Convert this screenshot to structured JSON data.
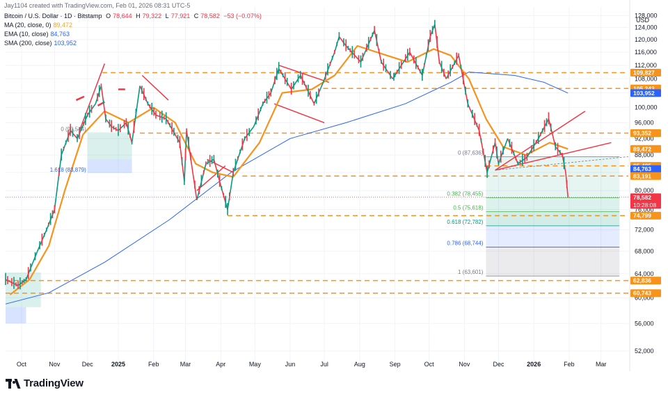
{
  "header": {
    "credit": "Jay1104 created with TradingView.com, Feb 01, 2026 08:31 UTC-5",
    "symbol": "Bitcoin / U.S. Dollar · 1D · Bitstamp",
    "o_label": "O",
    "o_value": "78,644",
    "h_label": "H",
    "h_value": "79,322",
    "l_label": "L",
    "l_value": "77,921",
    "c_label": "C",
    "c_value": "78,582",
    "change": "−53 (−0.07%)",
    "ma_label": "MA (20, close, 0)",
    "ma_value": "89,472",
    "ema_label": "EMA (10, close)",
    "ema_value": "84,763",
    "sma_label": "SMA (200, close)",
    "sma_value": "103,952"
  },
  "currency": "USD",
  "brand": "TradingView",
  "colors": {
    "up": "#089981",
    "down": "#f23645",
    "ma": "#f7931a",
    "sma": "#2962ff",
    "level": "#f7931a",
    "trend": "#f23645",
    "grid": "#f0f3fa"
  },
  "chart_data": {
    "type": "candlestick",
    "yaxis": {
      "scale": "log",
      "range": [
        50000,
        131000
      ],
      "position": "right",
      "ticks": [
        "128,000",
        "124,000",
        "120,000",
        "116,000",
        "112,000",
        "108,000",
        "104,000",
        "100,000",
        "96,000",
        "92,000",
        "88,000",
        "84,000",
        "80,000",
        "76,000",
        "72,000",
        "68,000",
        "64,000",
        "60,000",
        "56,000",
        "52,000"
      ]
    },
    "xaxis": {
      "labels": [
        "Oct",
        "Nov",
        "Dec",
        "2025",
        "Feb",
        "Mar",
        "Apr",
        "May",
        "Jun",
        "Jul",
        "Aug",
        "Sep",
        "Oct",
        "Nov",
        "Dec",
        "2026",
        "Feb",
        "Mar"
      ]
    },
    "grid": true,
    "price_path": [
      [
        "2024-09-24",
        63000
      ],
      [
        "2024-10-05",
        62000
      ],
      [
        "2024-10-12",
        63000
      ],
      [
        "2024-10-22",
        68000
      ],
      [
        "2024-10-30",
        72000
      ],
      [
        "2024-11-06",
        76000
      ],
      [
        "2024-11-12",
        88000
      ],
      [
        "2024-11-20",
        94000
      ],
      [
        "2024-11-26",
        92000
      ],
      [
        "2024-12-05",
        98000
      ],
      [
        "2024-12-12",
        101000
      ],
      [
        "2024-12-17",
        106000
      ],
      [
        "2024-12-21",
        97000
      ],
      [
        "2024-12-26",
        95000
      ],
      [
        "2025-01-01",
        94000
      ],
      [
        "2025-01-08",
        96000
      ],
      [
        "2025-01-13",
        91000
      ],
      [
        "2025-01-20",
        106000
      ],
      [
        "2025-01-27",
        101000
      ],
      [
        "2025-02-03",
        98000
      ],
      [
        "2025-02-12",
        97000
      ],
      [
        "2025-02-24",
        91000
      ],
      [
        "2025-02-28",
        82000
      ],
      [
        "2025-03-02",
        94000
      ],
      [
        "2025-03-11",
        78000
      ],
      [
        "2025-03-19",
        86000
      ],
      [
        "2025-03-26",
        87000
      ],
      [
        "2025-03-31",
        82000
      ],
      [
        "2025-04-07",
        76000
      ],
      [
        "2025-04-12",
        84000
      ],
      [
        "2025-04-22",
        92000
      ],
      [
        "2025-04-30",
        95000
      ],
      [
        "2025-05-08",
        101000
      ],
      [
        "2025-05-15",
        104000
      ],
      [
        "2025-05-22",
        111000
      ],
      [
        "2025-06-02",
        105000
      ],
      [
        "2025-06-10",
        109000
      ],
      [
        "2025-06-22",
        101000
      ],
      [
        "2025-06-30",
        107000
      ],
      [
        "2025-07-10",
        116000
      ],
      [
        "2025-07-14",
        121000
      ],
      [
        "2025-07-20",
        118000
      ],
      [
        "2025-08-02",
        113000
      ],
      [
        "2025-08-14",
        123000
      ],
      [
        "2025-08-20",
        113000
      ],
      [
        "2025-08-30",
        108000
      ],
      [
        "2025-09-01",
        109000
      ],
      [
        "2025-09-14",
        116000
      ],
      [
        "2025-09-25",
        109000
      ],
      [
        "2025-10-02",
        121000
      ],
      [
        "2025-10-06",
        125000
      ],
      [
        "2025-10-10",
        113000
      ],
      [
        "2025-10-16",
        108000
      ],
      [
        "2025-10-27",
        115000
      ],
      [
        "2025-11-04",
        101000
      ],
      [
        "2025-11-14",
        94000
      ],
      [
        "2025-11-21",
        84000
      ],
      [
        "2025-11-28",
        91000
      ],
      [
        "2025-12-01",
        86000
      ],
      [
        "2025-12-09",
        92000
      ],
      [
        "2025-12-18",
        86000
      ],
      [
        "2025-12-26",
        87500
      ],
      [
        "2026-01-05",
        92000
      ],
      [
        "2026-01-14",
        97000
      ],
      [
        "2026-01-20",
        90000
      ],
      [
        "2026-01-26",
        88000
      ],
      [
        "2026-01-29",
        84000
      ],
      [
        "2026-01-31",
        78582
      ]
    ],
    "ma20_path": [
      [
        "2024-09-28",
        60500
      ],
      [
        "2024-10-15",
        63000
      ],
      [
        "2024-11-01",
        69000
      ],
      [
        "2024-11-15",
        80000
      ],
      [
        "2024-12-01",
        93000
      ],
      [
        "2024-12-20",
        99000
      ],
      [
        "2025-01-10",
        96000
      ],
      [
        "2025-02-01",
        100000
      ],
      [
        "2025-02-20",
        96000
      ],
      [
        "2025-03-10",
        86000
      ],
      [
        "2025-03-25",
        84000
      ],
      [
        "2025-04-12",
        83000
      ],
      [
        "2025-05-05",
        91000
      ],
      [
        "2025-05-25",
        104000
      ],
      [
        "2025-06-20",
        105000
      ],
      [
        "2025-07-10",
        109000
      ],
      [
        "2025-07-30",
        118000
      ],
      [
        "2025-08-25",
        115000
      ],
      [
        "2025-09-12",
        113000
      ],
      [
        "2025-10-05",
        117000
      ],
      [
        "2025-10-20",
        115000
      ],
      [
        "2025-11-05",
        108000
      ],
      [
        "2025-11-20",
        97000
      ],
      [
        "2025-12-05",
        90000
      ],
      [
        "2025-12-25",
        88000
      ],
      [
        "2026-01-15",
        91000
      ],
      [
        "2026-01-31",
        89472
      ]
    ],
    "sma200_path": [
      [
        "2024-09-24",
        59000
      ],
      [
        "2024-11-01",
        60800
      ],
      [
        "2024-12-20",
        66000
      ],
      [
        "2025-02-15",
        74000
      ],
      [
        "2025-04-10",
        84000
      ],
      [
        "2025-06-01",
        92000
      ],
      [
        "2025-07-20",
        96000
      ],
      [
        "2025-09-10",
        101000
      ],
      [
        "2025-10-20",
        107000
      ],
      [
        "2025-11-05",
        110000
      ],
      [
        "2025-12-15",
        109000
      ],
      [
        "2026-01-10",
        107000
      ],
      [
        "2026-01-31",
        103952
      ]
    ],
    "price_levels": [
      {
        "value": 109827,
        "label": "109,827",
        "color": "#f7931a"
      },
      {
        "value": 105243,
        "label": "105,243",
        "color": "#f7931a"
      },
      {
        "value": 103952,
        "label": "103,952",
        "color": "#2962ff"
      },
      {
        "value": 93352,
        "label": "93,352",
        "color": "#f7931a"
      },
      {
        "value": 89472,
        "label": "89,472",
        "color": "#f7931a"
      },
      {
        "value": 85485,
        "label": "85,485",
        "color": "#f7931a"
      },
      {
        "value": 84763,
        "label": "84,763",
        "color": "#2962ff"
      },
      {
        "value": 83191,
        "label": "83,191",
        "color": "#f7931a"
      },
      {
        "value": 78582,
        "label": "78,582",
        "sub": "10:28:08",
        "color": "#f23645"
      },
      {
        "value": 74799,
        "label": "74,799",
        "color": "#f7931a"
      },
      {
        "value": 62836,
        "label": "62,836",
        "color": "#f7931a"
      },
      {
        "value": 60743,
        "label": "60,743",
        "color": "#f7931a"
      }
    ],
    "fib_right": [
      {
        "ratio": "0",
        "value": 87636,
        "label": "0 (87,636)"
      },
      {
        "ratio": "0.382",
        "value": 78455,
        "label": "0.382 (78,455)"
      },
      {
        "ratio": "0.5",
        "value": 75618,
        "label": "0.5 (75,618)"
      },
      {
        "ratio": "0.618",
        "value": 72782,
        "label": "0.618 (72,782)"
      },
      {
        "ratio": "0.786",
        "value": 68744,
        "label": "0.786 (68,744)"
      },
      {
        "ratio": "1",
        "value": 63601,
        "label": "1 (63,601)"
      }
    ],
    "fib_left": [
      {
        "ratio": "0",
        "value": 93544,
        "label": "0 (93,544)"
      },
      {
        "ratio": "1.618",
        "value": 83879,
        "label": "1.618 (83,879)"
      }
    ]
  }
}
